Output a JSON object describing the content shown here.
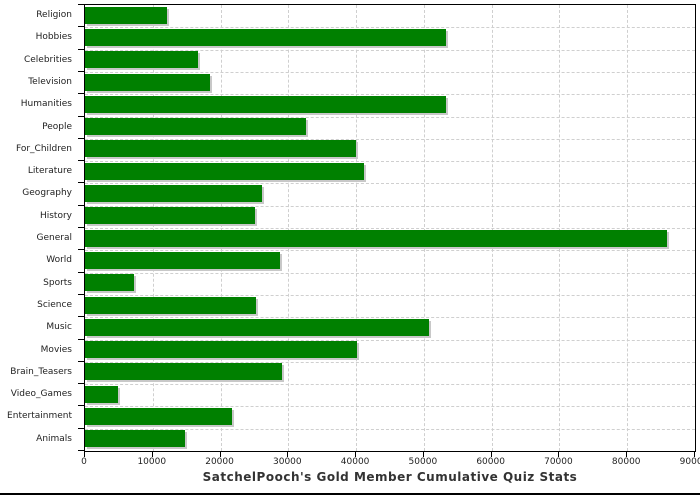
{
  "chart_data": {
    "type": "bar",
    "orientation": "horizontal",
    "title": "SatchelPooch's Gold Member Cumulative Quiz Stats",
    "xlabel": "",
    "ylabel": "",
    "xlim": [
      0,
      90000
    ],
    "grid": true,
    "legend": "none",
    "bar_color": "#008000",
    "bar_shadow_color": "#c8c8c8",
    "gridline_color": "#cfcfcf",
    "axis_color": "#000000",
    "categories": [
      "Religion",
      "Hobbies",
      "Celebrities",
      "Television",
      "Humanities",
      "People",
      "For_Children",
      "Literature",
      "Geography",
      "History",
      "General",
      "World",
      "Sports",
      "Science",
      "Music",
      "Movies",
      "Brain_Teasers",
      "Video_Games",
      "Entertainment",
      "Animals"
    ],
    "values": [
      12100,
      53200,
      16700,
      18400,
      53300,
      32600,
      40000,
      41200,
      26100,
      25100,
      85900,
      28700,
      7200,
      25300,
      50800,
      40100,
      29100,
      4900,
      21700,
      14700
    ],
    "x_ticks": [
      0,
      10000,
      20000,
      30000,
      40000,
      50000,
      60000,
      70000,
      80000,
      90000
    ],
    "x_tick_labels": [
      "0",
      "10000",
      "20000",
      "30000",
      "40000",
      "50000",
      "60000",
      "70000",
      "80000",
      "90000"
    ]
  }
}
